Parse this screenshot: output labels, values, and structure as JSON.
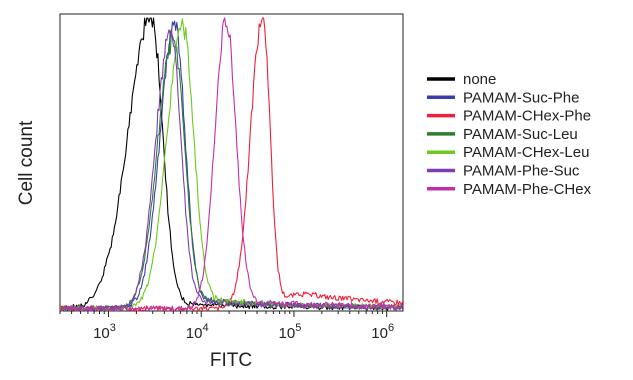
{
  "chart_data": {
    "type": "line",
    "x_scale": "log",
    "xlim": [
      300,
      1500000
    ],
    "ylim": [
      0,
      1.0
    ],
    "xlabel": "FITC",
    "ylabel": "Cell count",
    "x_ticks": [
      {
        "value": 1000,
        "base": "10",
        "exp": "3"
      },
      {
        "value": 10000,
        "base": "10",
        "exp": "4"
      },
      {
        "value": 100000,
        "base": "10",
        "exp": "5"
      },
      {
        "value": 1000000,
        "base": "10",
        "exp": "6"
      }
    ],
    "grid": false,
    "legend_position": "right",
    "series": [
      {
        "name": "none",
        "color": "#000000",
        "peak_x": 2900,
        "peak_y": 1.0,
        "sigma_left": 0.25,
        "sigma_right": 0.12,
        "tail": 0.02,
        "seed": 1
      },
      {
        "name": "PAMAM-Suc-Phe",
        "color": "#3a3fa8",
        "peak_x": 5200,
        "peak_y": 0.97,
        "sigma_left": 0.16,
        "sigma_right": 0.11,
        "tail": 0.035,
        "seed": 2
      },
      {
        "name": "PAMAM-CHex-Phe",
        "color": "#f0203a",
        "peak_x": 46000,
        "peak_y": 1.0,
        "sigma_left": 0.13,
        "sigma_right": 0.08,
        "tail": 0.07,
        "seed": 3
      },
      {
        "name": "PAMAM-Suc-Leu",
        "color": "#2e7d32",
        "peak_x": 5000,
        "peak_y": 0.92,
        "sigma_left": 0.17,
        "sigma_right": 0.12,
        "tail": 0.03,
        "seed": 4
      },
      {
        "name": "PAMAM-CHex-Leu",
        "color": "#6ccb1e",
        "peak_x": 6300,
        "peak_y": 0.96,
        "sigma_left": 0.17,
        "sigma_right": 0.12,
        "tail": 0.035,
        "seed": 5
      },
      {
        "name": "PAMAM-Phe-Suc",
        "color": "#7b3fb0",
        "peak_x": 4700,
        "peak_y": 0.95,
        "sigma_left": 0.16,
        "sigma_right": 0.11,
        "tail": 0.03,
        "seed": 6
      },
      {
        "name": "PAMAM-Phe-CHex",
        "color": "#c22fae",
        "peak_x": 18500,
        "peak_y": 0.98,
        "sigma_left": 0.12,
        "sigma_right": 0.11,
        "tail": 0.03,
        "seed": 7
      }
    ]
  }
}
